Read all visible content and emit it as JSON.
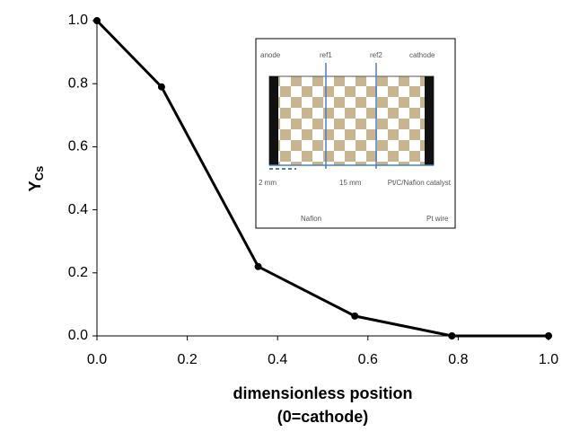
{
  "chart_data": {
    "type": "line",
    "ylabel": "Y",
    "ylabel_subscript": "Cs",
    "xlabel": [
      "dimensionless position",
      "(0=cathode)"
    ],
    "x": [
      0.0,
      0.143,
      0.357,
      0.571,
      0.786,
      1.0
    ],
    "series": [
      {
        "color": "#000000",
        "values": [
          1.0,
          0.79,
          0.22,
          0.063,
          0.0,
          0.0
        ]
      }
    ],
    "xlim": [
      0,
      1
    ],
    "ylim": [
      0,
      1
    ],
    "xticks": [
      {
        "value": 0,
        "label": "0.0"
      },
      {
        "value": 0.2,
        "label": "0.2"
      },
      {
        "value": 0.4,
        "label": "0.4"
      },
      {
        "value": 0.6,
        "label": "0.6"
      },
      {
        "value": 0.8,
        "label": "0.8"
      },
      {
        "value": 1,
        "label": "1.0"
      }
    ],
    "yticks": [
      {
        "value": 0,
        "label": "0.0"
      },
      {
        "value": 0.2,
        "label": "0.2"
      },
      {
        "value": 0.4,
        "label": "0.4"
      },
      {
        "value": 0.6,
        "label": "0.6"
      },
      {
        "value": 0.8,
        "label": "0.8"
      },
      {
        "value": 1,
        "label": "1.0"
      }
    ],
    "inset_labels": [
      "anode",
      "ref1",
      "ref2",
      "cathode",
      "2 mm",
      "15 mm",
      "Nafion",
      "Pt wire",
      "Pt/C/Nafion catalyst"
    ]
  }
}
